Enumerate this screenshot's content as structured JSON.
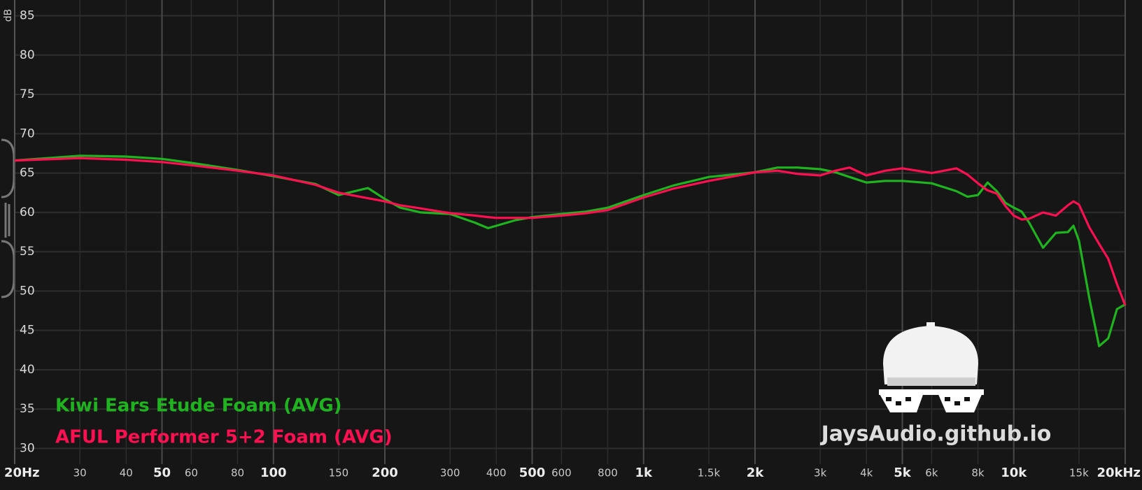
{
  "chart_data": {
    "type": "line",
    "xscale": "log",
    "ylabel": "dB",
    "grid": true,
    "watermark": "JaysAudio.github.io",
    "xlim": [
      20,
      20000
    ],
    "ylim": [
      28,
      87
    ],
    "yticks": [
      30,
      35,
      40,
      45,
      50,
      55,
      60,
      65,
      70,
      75,
      80,
      85
    ],
    "xticks": [
      {
        "value": 20,
        "label": "20Hz"
      },
      30,
      40,
      50,
      60,
      80,
      100,
      150,
      200,
      300,
      400,
      500,
      600,
      800,
      {
        "value": 1000,
        "label": "1k"
      },
      {
        "value": 1500,
        "label": "1.5k"
      },
      {
        "value": 2000,
        "label": "2k"
      },
      {
        "value": 3000,
        "label": "3k"
      },
      {
        "value": 4000,
        "label": "4k"
      },
      {
        "value": 5000,
        "label": "5k"
      },
      {
        "value": 6000,
        "label": "6k"
      },
      {
        "value": 8000,
        "label": "8k"
      },
      {
        "value": 10000,
        "label": "10k"
      },
      {
        "value": 15000,
        "label": "15k"
      },
      {
        "value": 20000,
        "label": "20kHz"
      }
    ],
    "x": [
      20,
      30,
      40,
      50,
      60,
      80,
      100,
      130,
      150,
      180,
      200,
      220,
      250,
      300,
      350,
      380,
      400,
      450,
      500,
      600,
      700,
      800,
      1000,
      1200,
      1500,
      2000,
      2300,
      2600,
      3000,
      3300,
      3600,
      4000,
      4500,
      5000,
      6000,
      7000,
      7500,
      8000,
      8500,
      9000,
      9500,
      10000,
      10500,
      11000,
      12000,
      13000,
      14000,
      14500,
      15000,
      16000,
      17000,
      18000,
      19000,
      20000
    ],
    "series": [
      {
        "name": "Kiwi Ears Etude Foam (AVG)",
        "color": "#1fb41f",
        "values": [
          66.6,
          67.2,
          67.1,
          66.8,
          66.3,
          65.4,
          64.6,
          63.6,
          62.2,
          63.1,
          61.7,
          60.6,
          60.0,
          59.8,
          58.7,
          58.0,
          58.3,
          59.0,
          59.4,
          59.8,
          60.1,
          60.6,
          62.2,
          63.4,
          64.5,
          65.1,
          65.7,
          65.7,
          65.5,
          65.1,
          64.5,
          63.8,
          64.0,
          64.0,
          63.7,
          62.7,
          62.0,
          62.2,
          63.8,
          62.7,
          61.2,
          60.6,
          60.1,
          58.7,
          55.5,
          57.4,
          57.5,
          58.3,
          56.4,
          49.1,
          43.0,
          44.0,
          47.7,
          48.3
        ]
      },
      {
        "name": "AFUL Performer 5+2 Foam (AVG)",
        "color": "#ff1050",
        "values": [
          66.6,
          66.9,
          66.7,
          66.4,
          66.0,
          65.3,
          64.7,
          63.5,
          62.5,
          61.8,
          61.4,
          60.9,
          60.5,
          59.9,
          59.6,
          59.4,
          59.3,
          59.3,
          59.3,
          59.6,
          59.9,
          60.3,
          61.9,
          63.0,
          64.0,
          65.1,
          65.3,
          64.9,
          64.7,
          65.3,
          65.7,
          64.7,
          65.3,
          65.6,
          65.0,
          65.6,
          64.8,
          63.7,
          62.8,
          62.4,
          60.8,
          59.6,
          59.1,
          59.2,
          60.0,
          59.6,
          60.9,
          61.4,
          61.0,
          58.1,
          56.0,
          54.1,
          50.9,
          48.2
        ]
      }
    ]
  }
}
